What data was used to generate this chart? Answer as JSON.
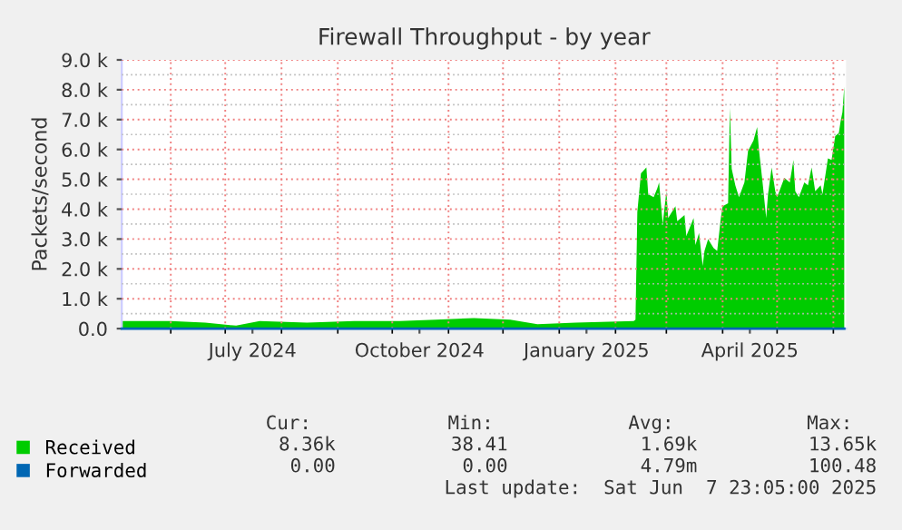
{
  "chart_data": {
    "type": "area",
    "title": "Firewall Throughput - by year",
    "ylabel": "Packets/second",
    "xlim": [
      "2024-05-05",
      "2025-06-08"
    ],
    "xticks": [
      {
        "value": "2024-07-16",
        "label": "July 2024"
      },
      {
        "value": "2024-10-16",
        "label": "October 2024"
      },
      {
        "value": "2025-01-16",
        "label": "January 2025"
      },
      {
        "value": "2025-04-16",
        "label": "April 2025"
      }
    ],
    "ylim": [
      0,
      9000
    ],
    "yticks": [
      {
        "value": 0,
        "label": "0.0"
      },
      {
        "value": 1000,
        "label": "1.0 k"
      },
      {
        "value": 2000,
        "label": "2.0 k"
      },
      {
        "value": 3000,
        "label": "3.0 k"
      },
      {
        "value": 4000,
        "label": "4.0 k"
      },
      {
        "value": 5000,
        "label": "5.0 k"
      },
      {
        "value": 6000,
        "label": "6.0 k"
      },
      {
        "value": 7000,
        "label": "7.0 k"
      },
      {
        "value": 8000,
        "label": "8.0 k"
      },
      {
        "value": 9000,
        "label": "9.0 k"
      }
    ],
    "grid": true,
    "legend": "bottom",
    "series": [
      {
        "name": "Received",
        "color": "#00cc00",
        "x": [
          "2024-05-05",
          "2024-06-01",
          "2024-06-20",
          "2024-07-07",
          "2024-07-20",
          "2024-08-15",
          "2024-09-10",
          "2024-10-05",
          "2024-10-25",
          "2024-11-15",
          "2024-12-05",
          "2024-12-20",
          "2025-01-10",
          "2025-02-11",
          "2025-02-12",
          "2025-02-13",
          "2025-02-15",
          "2025-02-18",
          "2025-02-19",
          "2025-02-22",
          "2025-02-24",
          "2025-02-25",
          "2025-02-27",
          "2025-03-01",
          "2025-03-02",
          "2025-03-06",
          "2025-03-07",
          "2025-03-11",
          "2025-03-12",
          "2025-03-16",
          "2025-03-17",
          "2025-03-19",
          "2025-03-21",
          "2025-03-22",
          "2025-03-24",
          "2025-03-27",
          "2025-03-29",
          "2025-03-31",
          "2025-04-01",
          "2025-04-04",
          "2025-04-05",
          "2025-04-06",
          "2025-04-08",
          "2025-04-10",
          "2025-04-13",
          "2025-04-15",
          "2025-04-18",
          "2025-04-20",
          "2025-04-21",
          "2025-04-23",
          "2025-04-25",
          "2025-04-26",
          "2025-04-28",
          "2025-04-30",
          "2025-05-01",
          "2025-05-05",
          "2025-05-08",
          "2025-05-10",
          "2025-05-11",
          "2025-05-13",
          "2025-05-16",
          "2025-05-18",
          "2025-05-20",
          "2025-05-22",
          "2025-05-25",
          "2025-05-26",
          "2025-05-29",
          "2025-05-31",
          "2025-06-02",
          "2025-06-04",
          "2025-06-05",
          "2025-06-06",
          "2025-06-07"
        ],
        "values": [
          250,
          250,
          200,
          100,
          250,
          200,
          250,
          250,
          300,
          350,
          300,
          150,
          200,
          250,
          300,
          3900,
          5200,
          5400,
          4500,
          4400,
          4700,
          4900,
          3500,
          4600,
          3700,
          4100,
          3600,
          3800,
          3100,
          3700,
          2800,
          3200,
          2100,
          2600,
          3000,
          2700,
          2600,
          3700,
          4100,
          4200,
          7400,
          5350,
          4800,
          4400,
          4900,
          5950,
          6300,
          6750,
          6000,
          4900,
          3700,
          4500,
          5400,
          4600,
          4400,
          5050,
          4900,
          5650,
          4600,
          4400,
          4900,
          4800,
          5400,
          4600,
          4800,
          4500,
          5700,
          5650,
          6450,
          6550,
          6950,
          7250,
          8100
        ]
      },
      {
        "name": "Forwarded",
        "type": "line",
        "color": "#0066b3",
        "x": [
          "2024-05-05",
          "2025-06-07"
        ],
        "values": [
          0,
          0
        ]
      }
    ],
    "annotations": [
      "Cur:",
      "Min:",
      "Avg:",
      "Max:",
      "8.36k",
      "38.41",
      "1.69k",
      "13.65k",
      "0.00",
      "0.00",
      "4.79m",
      "100.48",
      "Last update:  Sat Jun  7 23:05:00 2025"
    ]
  }
}
